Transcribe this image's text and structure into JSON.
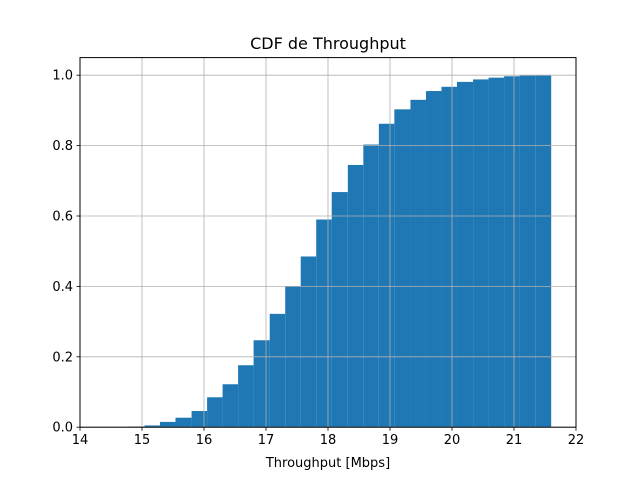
{
  "chart_data": {
    "type": "bar",
    "subtype": "cumulative-histogram",
    "title": "CDF de Throughput",
    "xlabel": "Throughput [Mbps]",
    "ylabel": "",
    "xlim": [
      14,
      22
    ],
    "ylim": [
      0,
      1.05
    ],
    "xticks": [
      14,
      15,
      16,
      17,
      18,
      19,
      20,
      21,
      22
    ],
    "yticks": [
      0.0,
      0.2,
      0.4,
      0.6,
      0.8,
      1.0
    ],
    "xtick_labels": [
      "14",
      "15",
      "16",
      "17",
      "18",
      "19",
      "20",
      "21",
      "22"
    ],
    "ytick_labels": [
      "0.0",
      "0.2",
      "0.4",
      "0.6",
      "0.8",
      "1.0"
    ],
    "grid": true,
    "bar_color": "#1f77b4",
    "bins": [
      {
        "x0": 14.03,
        "x1": 14.28,
        "value": 0.0
      },
      {
        "x0": 14.28,
        "x1": 14.53,
        "value": 0.0
      },
      {
        "x0": 14.53,
        "x1": 14.79,
        "value": 0.0
      },
      {
        "x0": 14.79,
        "x1": 15.04,
        "value": 0.002
      },
      {
        "x0": 15.04,
        "x1": 15.29,
        "value": 0.005
      },
      {
        "x0": 15.29,
        "x1": 15.54,
        "value": 0.015
      },
      {
        "x0": 15.54,
        "x1": 15.8,
        "value": 0.027
      },
      {
        "x0": 15.8,
        "x1": 16.05,
        "value": 0.046
      },
      {
        "x0": 16.05,
        "x1": 16.3,
        "value": 0.085
      },
      {
        "x0": 16.3,
        "x1": 16.55,
        "value": 0.122
      },
      {
        "x0": 16.55,
        "x1": 16.8,
        "value": 0.176
      },
      {
        "x0": 16.8,
        "x1": 17.06,
        "value": 0.247
      },
      {
        "x0": 17.06,
        "x1": 17.31,
        "value": 0.322
      },
      {
        "x0": 17.31,
        "x1": 17.56,
        "value": 0.4
      },
      {
        "x0": 17.56,
        "x1": 17.81,
        "value": 0.485
      },
      {
        "x0": 17.81,
        "x1": 18.06,
        "value": 0.59
      },
      {
        "x0": 18.06,
        "x1": 18.32,
        "value": 0.668
      },
      {
        "x0": 18.32,
        "x1": 18.57,
        "value": 0.745
      },
      {
        "x0": 18.57,
        "x1": 18.82,
        "value": 0.803
      },
      {
        "x0": 18.82,
        "x1": 19.07,
        "value": 0.862
      },
      {
        "x0": 19.07,
        "x1": 19.33,
        "value": 0.903
      },
      {
        "x0": 19.33,
        "x1": 19.58,
        "value": 0.93
      },
      {
        "x0": 19.58,
        "x1": 19.83,
        "value": 0.955
      },
      {
        "x0": 19.83,
        "x1": 20.08,
        "value": 0.967
      },
      {
        "x0": 20.08,
        "x1": 20.34,
        "value": 0.981
      },
      {
        "x0": 20.34,
        "x1": 20.59,
        "value": 0.988
      },
      {
        "x0": 20.59,
        "x1": 20.84,
        "value": 0.993
      },
      {
        "x0": 20.84,
        "x1": 21.09,
        "value": 0.997
      },
      {
        "x0": 21.09,
        "x1": 21.35,
        "value": 0.999
      },
      {
        "x0": 21.35,
        "x1": 21.6,
        "value": 1.0
      }
    ]
  }
}
